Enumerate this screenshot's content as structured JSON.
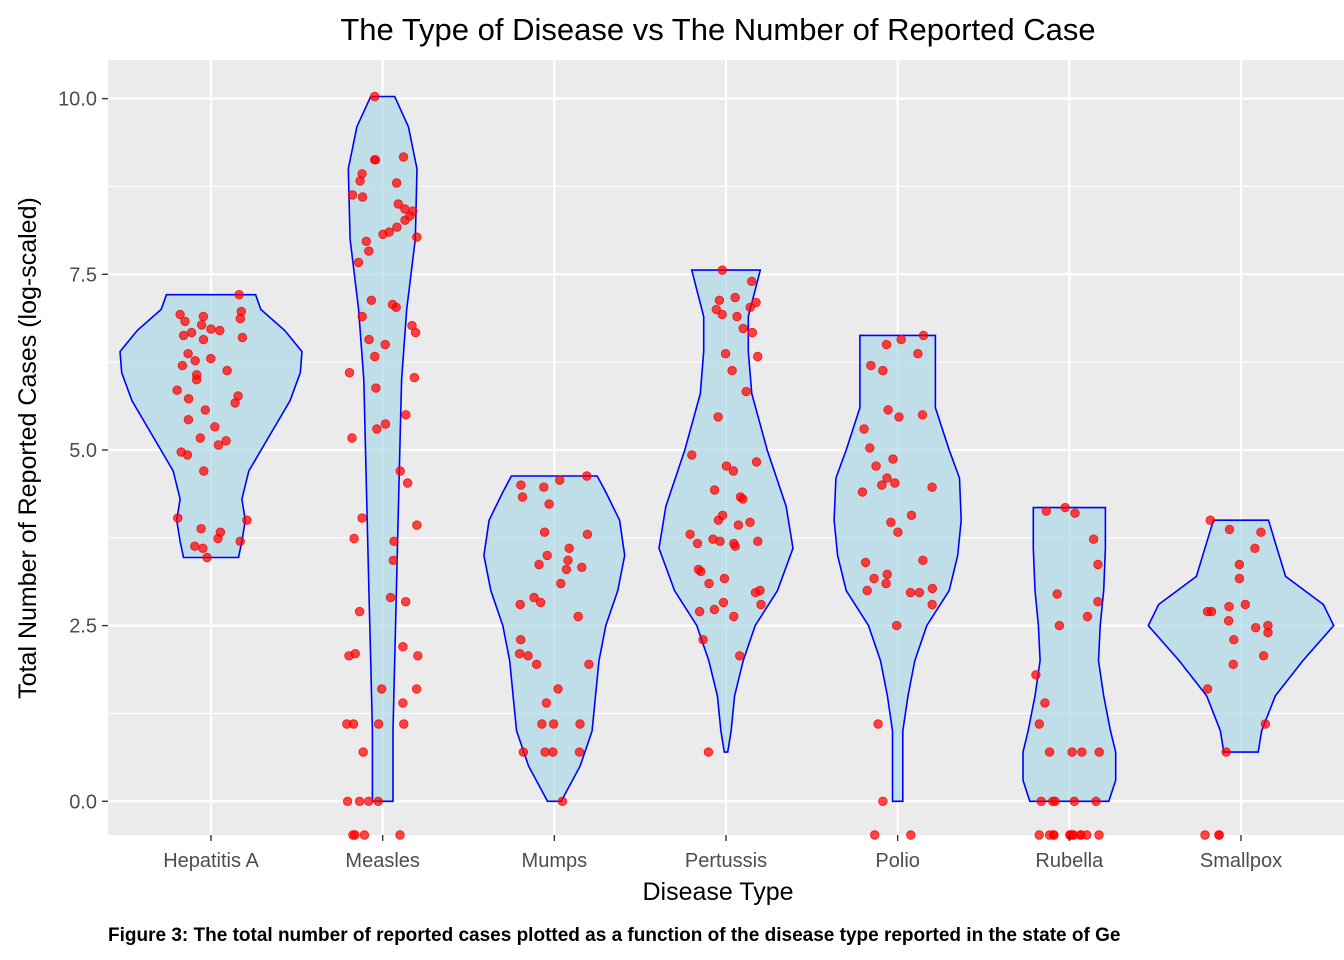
{
  "chart_data": {
    "type": "violin",
    "title": "The Type of Disease vs The Number of Reported Case",
    "xlabel": "Disease Type",
    "ylabel": "Total Number of Reported Cases (log-scaled)",
    "caption": "Figure 3: The total number of reported cases plotted as a function of the disease type reported in the state of Ge",
    "categories": [
      "Hepatitis A",
      "Measles",
      "Mumps",
      "Pertussis",
      "Polio",
      "Rubella",
      "Smallpox"
    ],
    "y_ticks": [
      "0.0",
      "2.5",
      "5.0",
      "7.5",
      "10.0"
    ],
    "y_tick_values": [
      0,
      2.5,
      5,
      7.5,
      10
    ],
    "ylim": [
      -0.48,
      10.55
    ],
    "grid": true,
    "colors": {
      "panel": "#ebebeb",
      "grid": "#ffffff",
      "violin_fill": "#add8e6",
      "violin_stroke": "#0000ff",
      "point": "#ff0000"
    },
    "violins": [
      {
        "category": "Hepatitis A",
        "profile": [
          [
            3.47,
            0.16
          ],
          [
            3.7,
            0.18
          ],
          [
            4.0,
            0.2
          ],
          [
            4.3,
            0.18
          ],
          [
            4.7,
            0.22
          ],
          [
            5.2,
            0.34
          ],
          [
            5.7,
            0.46
          ],
          [
            6.1,
            0.52
          ],
          [
            6.4,
            0.53
          ],
          [
            6.7,
            0.43
          ],
          [
            7.0,
            0.29
          ],
          [
            7.21,
            0.26
          ]
        ]
      },
      {
        "category": "Measles",
        "profile": [
          [
            0.0,
            0.06
          ],
          [
            0.5,
            0.06
          ],
          [
            1.0,
            0.06
          ],
          [
            2.0,
            0.07
          ],
          [
            3.0,
            0.08
          ],
          [
            4.0,
            0.09
          ],
          [
            5.0,
            0.1
          ],
          [
            6.0,
            0.11
          ],
          [
            7.0,
            0.14
          ],
          [
            8.0,
            0.19
          ],
          [
            9.0,
            0.2
          ],
          [
            9.6,
            0.15
          ],
          [
            10.03,
            0.07
          ]
        ]
      },
      {
        "category": "Mumps",
        "profile": [
          [
            0.0,
            0.04
          ],
          [
            0.5,
            0.15
          ],
          [
            1.0,
            0.22
          ],
          [
            1.5,
            0.24
          ],
          [
            2.0,
            0.26
          ],
          [
            2.5,
            0.3
          ],
          [
            3.0,
            0.37
          ],
          [
            3.5,
            0.41
          ],
          [
            4.0,
            0.38
          ],
          [
            4.4,
            0.3
          ],
          [
            4.63,
            0.25
          ]
        ]
      },
      {
        "category": "Pertussis",
        "profile": [
          [
            0.7,
            0.01
          ],
          [
            1.0,
            0.03
          ],
          [
            1.5,
            0.05
          ],
          [
            2.0,
            0.1
          ],
          [
            2.5,
            0.17
          ],
          [
            3.0,
            0.3
          ],
          [
            3.6,
            0.39
          ],
          [
            4.2,
            0.35
          ],
          [
            5.0,
            0.24
          ],
          [
            5.8,
            0.15
          ],
          [
            6.4,
            0.13
          ],
          [
            6.9,
            0.13
          ],
          [
            7.56,
            0.2
          ]
        ]
      },
      {
        "category": "Polio",
        "profile": [
          [
            0.0,
            0.03
          ],
          [
            0.5,
            0.03
          ],
          [
            1.0,
            0.03
          ],
          [
            1.5,
            0.06
          ],
          [
            2.0,
            0.1
          ],
          [
            2.5,
            0.17
          ],
          [
            3.0,
            0.3
          ],
          [
            3.5,
            0.35
          ],
          [
            4.0,
            0.37
          ],
          [
            4.6,
            0.36
          ],
          [
            5.0,
            0.3
          ],
          [
            5.6,
            0.22
          ],
          [
            6.0,
            0.22
          ],
          [
            6.63,
            0.22
          ]
        ]
      },
      {
        "category": "Rubella",
        "profile": [
          [
            0.0,
            0.23
          ],
          [
            0.3,
            0.27
          ],
          [
            0.7,
            0.27
          ],
          [
            1.0,
            0.24
          ],
          [
            1.5,
            0.2
          ],
          [
            2.0,
            0.17
          ],
          [
            2.5,
            0.18
          ],
          [
            3.0,
            0.2
          ],
          [
            3.6,
            0.21
          ],
          [
            4.18,
            0.21
          ]
        ]
      },
      {
        "category": "Smallpox",
        "profile": [
          [
            0.7,
            0.1
          ],
          [
            1.0,
            0.12
          ],
          [
            1.5,
            0.2
          ],
          [
            2.0,
            0.36
          ],
          [
            2.5,
            0.54
          ],
          [
            2.8,
            0.48
          ],
          [
            3.2,
            0.26
          ],
          [
            3.6,
            0.21
          ],
          [
            4.0,
            0.16
          ]
        ]
      }
    ],
    "points": [
      {
        "category": "Hepatitis A",
        "y": [
          7.21,
          6.97,
          6.93,
          6.9,
          6.87,
          6.83,
          6.78,
          6.72,
          6.7,
          6.67,
          6.63,
          6.6,
          6.57,
          6.37,
          6.3,
          6.27,
          6.2,
          6.13,
          6.07,
          6.0,
          5.85,
          5.77,
          5.73,
          5.67,
          5.57,
          5.43,
          5.33,
          5.17,
          5.13,
          5.07,
          4.97,
          4.93,
          4.7,
          4.03,
          4.0,
          3.88,
          3.83,
          3.74,
          3.7,
          3.63,
          3.6,
          3.47
        ]
      },
      {
        "category": "Measles",
        "y": [
          10.03,
          9.17,
          9.13,
          9.13,
          8.93,
          8.83,
          8.8,
          8.63,
          8.6,
          8.5,
          8.43,
          8.4,
          8.33,
          8.27,
          8.17,
          8.1,
          8.07,
          8.03,
          7.97,
          7.83,
          7.67,
          7.13,
          7.07,
          7.03,
          6.9,
          6.77,
          6.67,
          6.57,
          6.5,
          6.33,
          6.1,
          6.03,
          5.88,
          5.5,
          5.37,
          5.3,
          5.17,
          4.7,
          4.53,
          4.03,
          3.93,
          3.74,
          3.7,
          3.43,
          2.9,
          2.84,
          2.7,
          2.2,
          2.1,
          2.07,
          2.07,
          1.6,
          1.6,
          1.4,
          1.1,
          1.1,
          1.1,
          1.1,
          0.7,
          0,
          0,
          0,
          0,
          -0.48,
          -0.48,
          -0.48,
          -0.48
        ]
      },
      {
        "category": "Mumps",
        "y": [
          4.63,
          4.57,
          4.5,
          4.47,
          4.33,
          4.23,
          3.83,
          3.8,
          3.6,
          3.5,
          3.43,
          3.37,
          3.33,
          3.3,
          3.1,
          2.9,
          2.83,
          2.8,
          2.63,
          2.3,
          2.1,
          2.07,
          1.95,
          1.95,
          1.6,
          1.4,
          1.1,
          1.1,
          1.1,
          0.7,
          0.7,
          0.7,
          0.7,
          0
        ]
      },
      {
        "category": "Pertussis",
        "y": [
          7.56,
          7.4,
          7.17,
          7.13,
          7.1,
          7.03,
          7.0,
          6.93,
          6.9,
          6.73,
          6.67,
          6.37,
          6.33,
          6.13,
          5.83,
          5.47,
          4.93,
          4.83,
          4.77,
          4.7,
          4.43,
          4.33,
          4.3,
          4.07,
          4.0,
          3.97,
          3.93,
          3.8,
          3.73,
          3.7,
          3.7,
          3.67,
          3.67,
          3.63,
          3.3,
          3.27,
          3.17,
          3.1,
          3.0,
          2.97,
          2.83,
          2.8,
          2.73,
          2.7,
          2.63,
          2.3,
          2.07,
          0.7
        ]
      },
      {
        "category": "Polio",
        "y": [
          6.63,
          6.57,
          6.5,
          6.37,
          6.2,
          6.13,
          5.57,
          5.5,
          5.47,
          5.3,
          5.03,
          4.87,
          4.77,
          4.6,
          4.53,
          4.5,
          4.47,
          4.4,
          4.07,
          3.97,
          3.83,
          3.43,
          3.4,
          3.23,
          3.17,
          3.1,
          3.03,
          3.0,
          2.97,
          2.97,
          2.8,
          2.5,
          1.1,
          0,
          -0.48,
          -0.48
        ]
      },
      {
        "category": "Rubella",
        "y": [
          4.18,
          4.13,
          4.1,
          3.73,
          3.37,
          2.95,
          2.84,
          2.63,
          2.5,
          1.8,
          1.4,
          1.1,
          0.7,
          0.7,
          0.7,
          0.7,
          0,
          0,
          0,
          0,
          0,
          -0.48,
          -0.48,
          -0.48,
          -0.48,
          -0.48,
          -0.48,
          -0.48,
          -0.48,
          -0.48,
          -0.48,
          -0.48,
          -0.48
        ]
      },
      {
        "category": "Smallpox",
        "y": [
          4.0,
          3.87,
          3.83,
          3.6,
          3.37,
          3.17,
          2.8,
          2.77,
          2.7,
          2.7,
          2.57,
          2.5,
          2.47,
          2.4,
          2.3,
          2.07,
          1.95,
          1.6,
          1.1,
          0.7,
          -0.48,
          -0.48,
          -0.48
        ]
      }
    ]
  }
}
